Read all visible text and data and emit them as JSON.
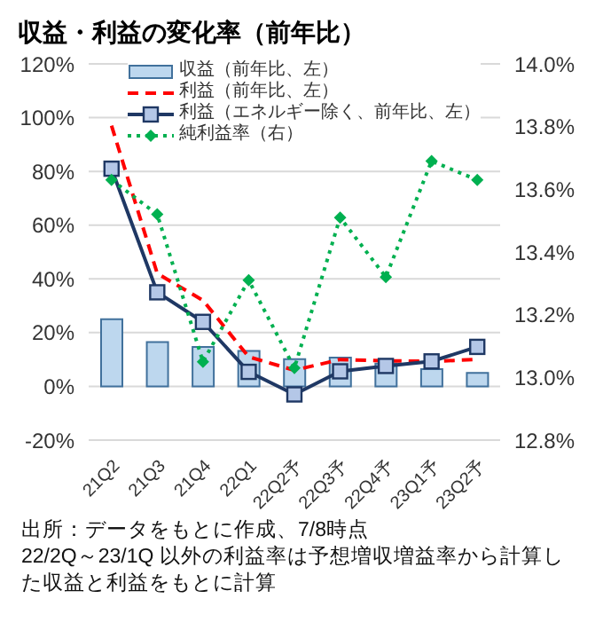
{
  "chart_data": {
    "type": "bar",
    "title": "収益・利益の変化率（前年比）",
    "categories": [
      "21Q2",
      "21Q3",
      "21Q4",
      "22Q1",
      "22Q2予",
      "22Q3予",
      "22Q4予",
      "23Q1予",
      "23Q2予"
    ],
    "series": [
      {
        "name": "収益（前年比、左）",
        "color": "#bdd7ee",
        "values": [
          25,
          16.5,
          14.7,
          13.2,
          10.1,
          10.7,
          8.5,
          6.4,
          5
        ]
      },
      {
        "name": "利益（前年比、左）",
        "type": "line",
        "color": "#ff0000",
        "line_style": "dashed",
        "marker": "none",
        "values": [
          97,
          42,
          32,
          11,
          6,
          10,
          9.5,
          9.3,
          10
        ]
      },
      {
        "name": "利益（エネルギー除く、前年比、左）",
        "type": "line",
        "color": "#1f3864",
        "line_style": "solid",
        "marker": "square",
        "values": [
          81,
          35,
          24,
          5.4,
          -3,
          5.6,
          7.6,
          9.3,
          14.7
        ]
      },
      {
        "name": "純利益率（右）",
        "type": "line",
        "axis": "y2",
        "color": "#00b050",
        "line_style": "dotted",
        "marker": "diamond",
        "values": [
          13.63,
          13.52,
          13.05,
          13.31,
          13.03,
          13.51,
          13.32,
          13.69,
          13.63
        ]
      }
    ],
    "ylim": [
      -20,
      120
    ],
    "yticks": [
      {
        "value": -20,
        "label": "-20%"
      },
      {
        "value": 0,
        "label": "0%"
      },
      {
        "value": 20,
        "label": "20%"
      },
      {
        "value": 40,
        "label": "40%"
      },
      {
        "value": 60,
        "label": "60%"
      },
      {
        "value": 80,
        "label": "80%"
      },
      {
        "value": 100,
        "label": "100%"
      },
      {
        "value": 120,
        "label": "120%"
      }
    ],
    "y2lim": [
      12.8,
      14.0
    ],
    "y2ticks": [
      {
        "value": 12.8,
        "label": "12.8%"
      },
      {
        "value": 13.0,
        "label": "13.0%"
      },
      {
        "value": 13.2,
        "label": "13.2%"
      },
      {
        "value": 13.4,
        "label": "13.4%"
      },
      {
        "value": 13.6,
        "label": "13.6%"
      },
      {
        "value": 13.8,
        "label": "13.8%"
      },
      {
        "value": 14.0,
        "label": "14.0%"
      }
    ],
    "grid": "y",
    "legend": "top",
    "annotations": [
      "出所：データをもとに作成、7/8時点",
      "22/2Q～23/1Q 以外の利益率は予想増収増益率から計算した収益と利益をもとに計算"
    ]
  }
}
